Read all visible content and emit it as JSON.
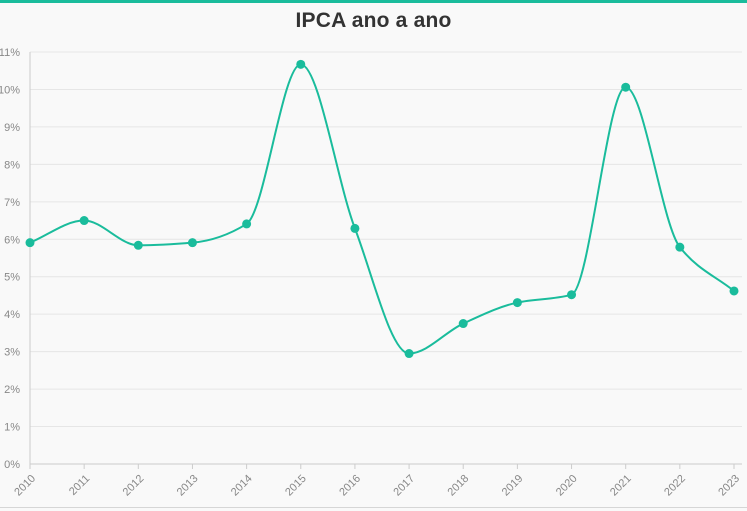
{
  "chart_data": {
    "type": "line",
    "title": "IPCA ano a ano",
    "xlabel": "",
    "ylabel": "",
    "x": [
      "2010",
      "2011",
      "2012",
      "2013",
      "2014",
      "2015",
      "2016",
      "2017",
      "2018",
      "2019",
      "2020",
      "2021",
      "2022",
      "2023"
    ],
    "series": [
      {
        "values": [
          5.91,
          6.5,
          5.84,
          5.91,
          6.41,
          10.67,
          6.29,
          2.95,
          3.75,
          4.31,
          4.52,
          10.06,
          5.79,
          4.62
        ]
      }
    ],
    "yticks": [
      "0%",
      "1%",
      "2%",
      "3%",
      "4%",
      "5%",
      "6%",
      "7%",
      "8%",
      "9%",
      "10%",
      "11%"
    ],
    "ylim": [
      0,
      11
    ],
    "grid": true,
    "colors": {
      "line": "#1abc9c",
      "grid": "#e6e6e6",
      "axis": "#cccccc",
      "background": "#f9f9f9"
    }
  }
}
